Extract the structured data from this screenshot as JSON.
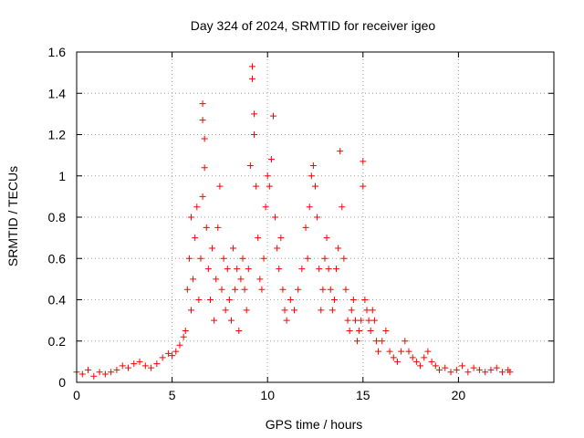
{
  "chart_data": {
    "type": "scatter",
    "title": "Day 324 of 2024, SRMTID for receiver igeo",
    "xlabel": "GPS time / hours",
    "ylabel": "SRMTID / TECUs",
    "xlim": [
      0,
      25
    ],
    "ylim": [
      0,
      1.6
    ],
    "xticks": [
      0,
      5,
      10,
      15,
      20
    ],
    "yticks": [
      0,
      0.2,
      0.4,
      0.6,
      0.8,
      1,
      1.2,
      1.4,
      1.6
    ],
    "xtick_labels": [
      "0",
      "5",
      "10",
      "15",
      "20"
    ],
    "ytick_labels": [
      "0",
      "0.2",
      "0.4",
      "0.6",
      "0.8",
      "1",
      "1.2",
      "1.4",
      "1.6"
    ],
    "grid": true,
    "marker": "+",
    "marker_color": "#ff0000",
    "series": [
      {
        "name": "SRMTID",
        "x": [
          0.0,
          0.3,
          0.6,
          0.9,
          1.2,
          1.5,
          1.8,
          2.1,
          2.4,
          2.7,
          3.0,
          3.3,
          3.6,
          3.9,
          4.2,
          4.5,
          4.8,
          5.0,
          5.2,
          5.4,
          5.6,
          5.7,
          5.8,
          5.9,
          6.0,
          6.0,
          6.1,
          6.2,
          6.3,
          6.4,
          6.5,
          6.6,
          6.6,
          6.6,
          6.7,
          6.7,
          6.8,
          6.9,
          7.0,
          7.1,
          7.2,
          7.3,
          7.4,
          7.5,
          7.6,
          7.7,
          7.8,
          7.9,
          8.0,
          8.1,
          8.2,
          8.3,
          8.4,
          8.5,
          8.6,
          8.7,
          8.8,
          8.9,
          9.0,
          9.1,
          9.2,
          9.2,
          9.3,
          9.3,
          9.4,
          9.5,
          9.6,
          9.7,
          9.8,
          9.9,
          10.0,
          10.1,
          10.2,
          10.3,
          10.4,
          10.5,
          10.6,
          10.7,
          10.8,
          10.9,
          11.0,
          11.2,
          11.4,
          11.6,
          11.8,
          12.0,
          12.1,
          12.2,
          12.3,
          12.4,
          12.5,
          12.6,
          12.7,
          12.8,
          12.9,
          13.0,
          13.1,
          13.2,
          13.3,
          13.4,
          13.5,
          13.6,
          13.7,
          13.8,
          13.9,
          14.0,
          14.1,
          14.2,
          14.3,
          14.4,
          14.5,
          14.6,
          14.7,
          14.8,
          14.9,
          15.0,
          15.0,
          15.1,
          15.2,
          15.3,
          15.4,
          15.5,
          15.6,
          15.7,
          15.8,
          16.0,
          16.2,
          16.4,
          16.6,
          16.8,
          17.0,
          17.2,
          17.4,
          17.6,
          17.8,
          18.0,
          18.2,
          18.4,
          18.6,
          18.8,
          19.0,
          19.3,
          19.6,
          19.9,
          20.2,
          20.5,
          20.8,
          21.1,
          21.4,
          21.7,
          22.0,
          22.3,
          22.6,
          22.7
        ],
        "y": [
          0.05,
          0.04,
          0.06,
          0.03,
          0.05,
          0.04,
          0.05,
          0.06,
          0.08,
          0.07,
          0.09,
          0.1,
          0.08,
          0.07,
          0.09,
          0.12,
          0.14,
          0.13,
          0.15,
          0.18,
          0.22,
          0.25,
          0.45,
          0.6,
          0.35,
          0.8,
          0.5,
          0.7,
          0.85,
          0.4,
          0.6,
          0.9,
          1.35,
          1.27,
          1.18,
          1.04,
          0.75,
          0.55,
          0.4,
          0.65,
          0.3,
          0.5,
          0.75,
          0.95,
          0.45,
          0.6,
          0.35,
          0.55,
          0.4,
          0.3,
          0.65,
          0.45,
          0.55,
          0.25,
          0.5,
          0.6,
          0.45,
          0.35,
          0.55,
          1.05,
          1.53,
          1.47,
          1.3,
          1.2,
          0.95,
          0.7,
          0.5,
          0.45,
          0.6,
          0.85,
          1.0,
          0.95,
          1.08,
          1.29,
          0.8,
          0.65,
          0.55,
          0.7,
          0.45,
          0.35,
          0.3,
          0.4,
          0.35,
          0.45,
          0.55,
          0.75,
          0.6,
          0.85,
          1.0,
          1.05,
          0.95,
          0.8,
          0.55,
          0.35,
          0.45,
          0.6,
          0.7,
          0.55,
          0.45,
          0.35,
          0.4,
          0.55,
          0.65,
          1.12,
          0.85,
          0.6,
          0.45,
          0.3,
          0.25,
          0.35,
          0.4,
          0.3,
          0.2,
          0.25,
          0.3,
          1.07,
          0.95,
          0.4,
          0.35,
          0.3,
          0.25,
          0.35,
          0.3,
          0.2,
          0.15,
          0.2,
          0.25,
          0.15,
          0.12,
          0.1,
          0.15,
          0.2,
          0.15,
          0.12,
          0.1,
          0.08,
          0.12,
          0.15,
          0.1,
          0.08,
          0.06,
          0.07,
          0.05,
          0.06,
          0.08,
          0.05,
          0.07,
          0.06,
          0.05,
          0.06,
          0.07,
          0.05,
          0.06,
          0.05
        ]
      }
    ]
  }
}
